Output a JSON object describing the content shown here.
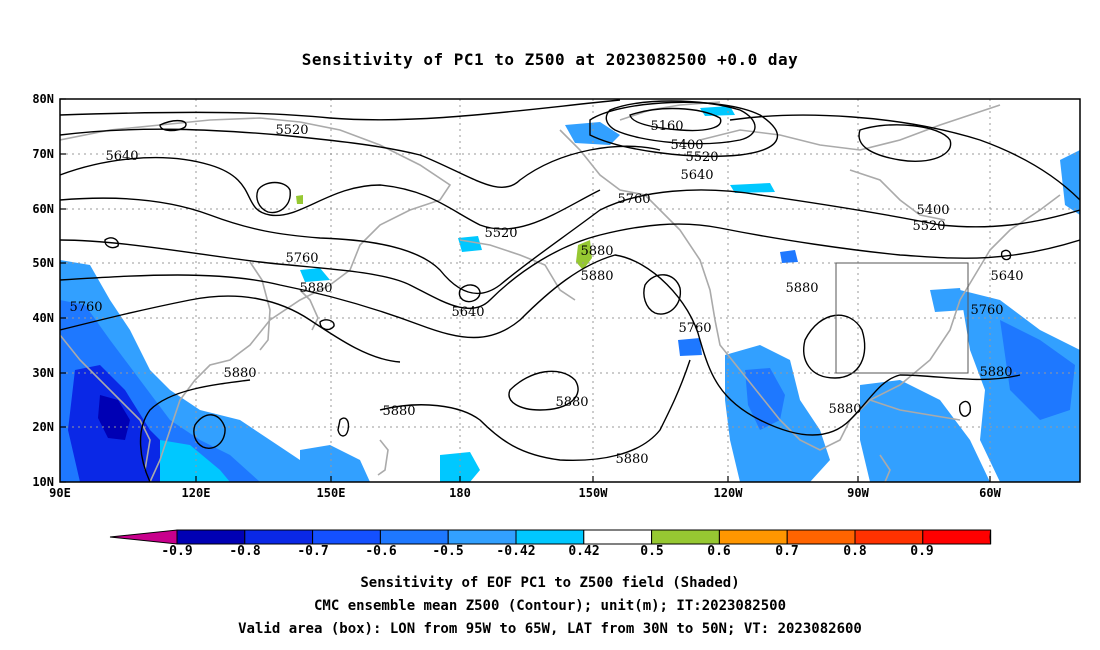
{
  "title": "Sensitivity of PC1 to Z500 at 2023082500 +0.0 day",
  "lat_labels": [
    "80N",
    "70N",
    "60N",
    "50N",
    "40N",
    "30N",
    "20N",
    "10N"
  ],
  "lon_labels": [
    "90E",
    "120E",
    "150E",
    "180",
    "150W",
    "120W",
    "90W",
    "60W"
  ],
  "contour_labels": [
    "5520",
    "5640",
    "5160",
    "5400",
    "5520",
    "5640",
    "5400",
    "5520",
    "5760",
    "5520",
    "5760",
    "5880",
    "5880",
    "5640",
    "5640",
    "5760",
    "5880",
    "5760",
    "5760",
    "5880",
    "5880",
    "5880",
    "5880",
    "5880"
  ],
  "colorbar": {
    "labels": [
      "-0.9",
      "-0.8",
      "-0.7",
      "-0.6",
      "-0.5",
      "-0.42",
      "0.42",
      "0.5",
      "0.6",
      "0.7",
      "0.8",
      "0.9"
    ],
    "colors": [
      "#c8008c",
      "#0000b4",
      "#0a28e6",
      "#1450ff",
      "#1e78ff",
      "#32a0ff",
      "#00c8ff",
      "#ffffff",
      "#96c832",
      "#ff9600",
      "#ff6400",
      "#ff3200",
      "#ff0000",
      "#ff96c8"
    ]
  },
  "captions": [
    "Sensitivity of EOF PC1 to Z500 field (Shaded)",
    "CMC ensemble mean Z500 (Contour); unit(m); IT:2023082500",
    "Valid area (box): LON from 95W to 65W, LAT from 30N to 50N; VT: 2023082600"
  ]
}
